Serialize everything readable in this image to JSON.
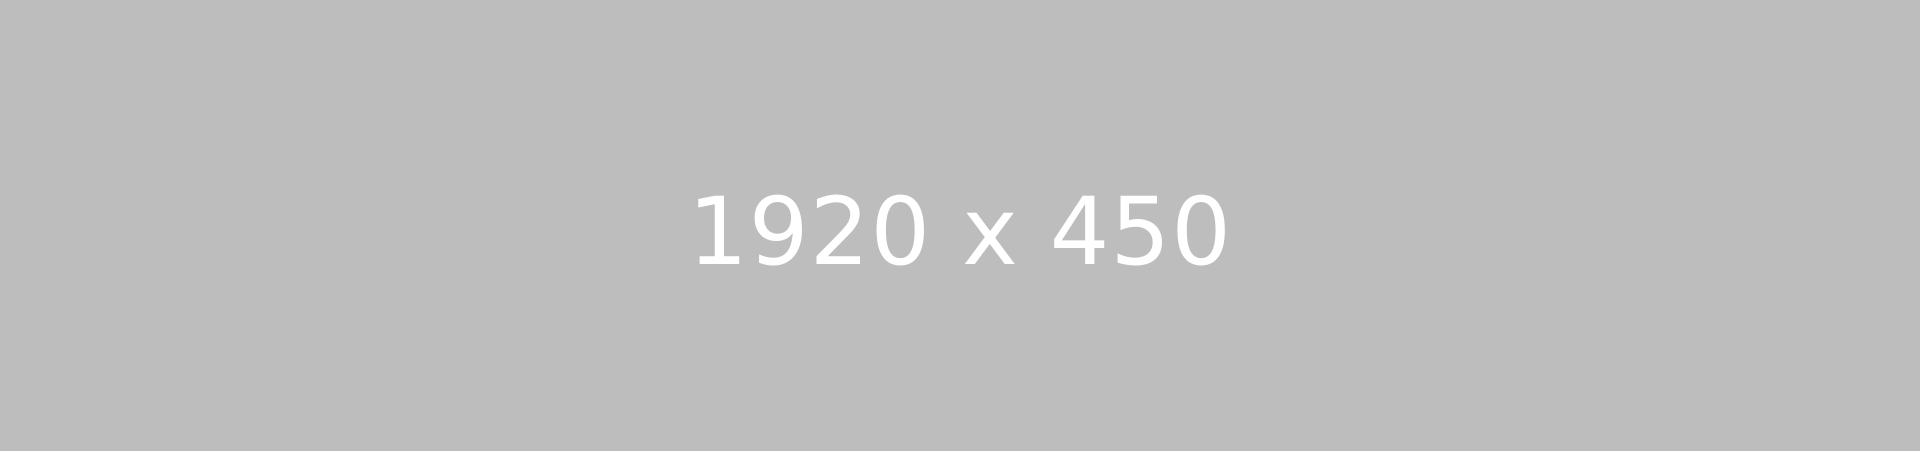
{
  "placeholder": {
    "label": "1920 x 450",
    "background_color": "#bdbdbd",
    "text_color": "#ffffff"
  }
}
